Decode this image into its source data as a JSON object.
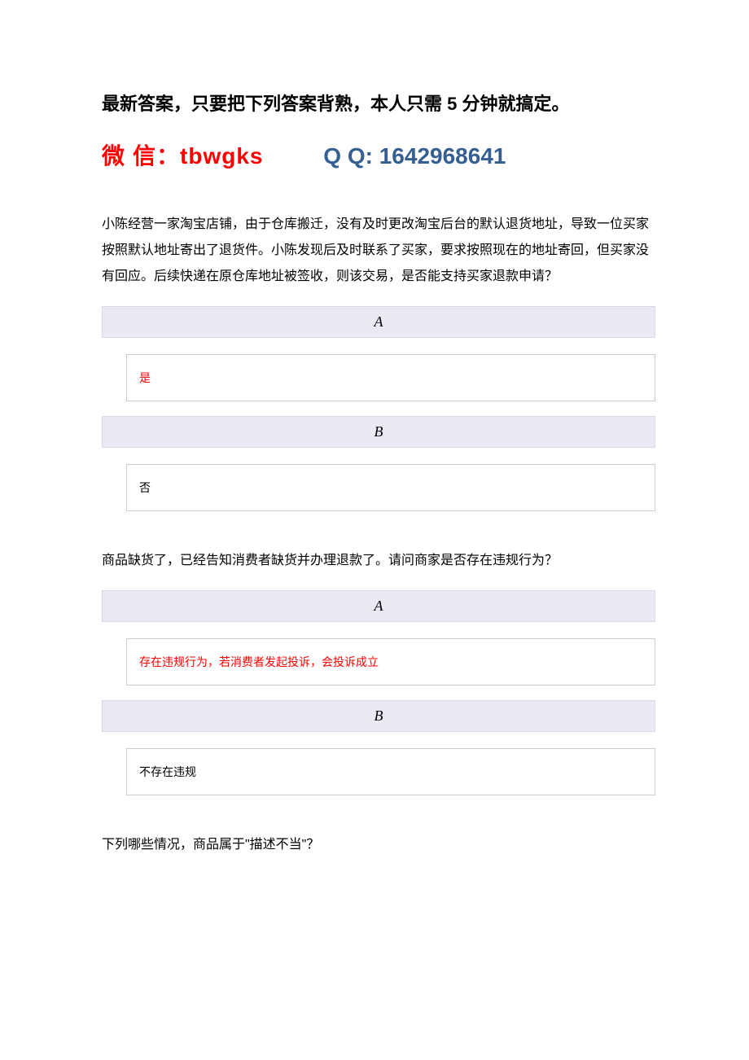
{
  "header": {
    "title": "最新答案，只要把下列答案背熟，本人只需 5 分钟就搞定。",
    "wechat_label": "微",
    "wechat_label2": "信：",
    "wechat_value": "tbwgks",
    "qq_label": "Q Q: ",
    "qq_value": "1642968641"
  },
  "questions": [
    {
      "text": "小陈经营一家淘宝店铺，由于仓库搬迁，没有及时更改淘宝后台的默认退货地址，导致一位买家按照默认地址寄出了退货件。小陈发现后及时联系了买家，要求按照现在的地址寄回，但买家没有回应。后续快递在原仓库地址被签收，则该交易，是否能支持买家退款申请？",
      "options": [
        {
          "letter": "A",
          "answer": "是",
          "correct": true
        },
        {
          "letter": "B",
          "answer": "否",
          "correct": false
        }
      ]
    },
    {
      "text": " 商品缺货了，已经告知消费者缺货并办理退款了。请问商家是否存在违规行为？",
      "options": [
        {
          "letter": "A",
          "answer": "存在违规行为，若消费者发起投诉，会投诉成立",
          "correct": true
        },
        {
          "letter": "B",
          "answer": "不存在违规",
          "correct": false
        }
      ]
    },
    {
      "text": "下列哪些情况，商品属于\"描述不当\"？",
      "options": []
    }
  ]
}
